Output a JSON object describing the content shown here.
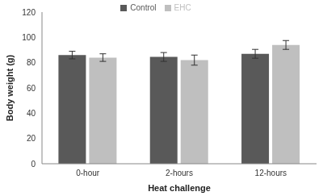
{
  "chart_data": {
    "type": "bar",
    "categories": [
      "0-hour",
      "2-hours",
      "12-hours"
    ],
    "series": [
      {
        "name": "Control",
        "color": "#595959",
        "values": [
          86,
          84.5,
          87
        ],
        "errors": [
          3,
          3.5,
          3.5
        ]
      },
      {
        "name": "EHC",
        "color": "#bfbfbf",
        "values": [
          84,
          82,
          94
        ],
        "errors": [
          3,
          4,
          3.5
        ]
      }
    ],
    "x_label": "Heat challenge",
    "y_label": "Body weight (g)",
    "ylim": [
      0,
      120
    ],
    "yticks": [
      0,
      20,
      40,
      60,
      80,
      100,
      120
    ],
    "grid": false,
    "legend": "top"
  }
}
